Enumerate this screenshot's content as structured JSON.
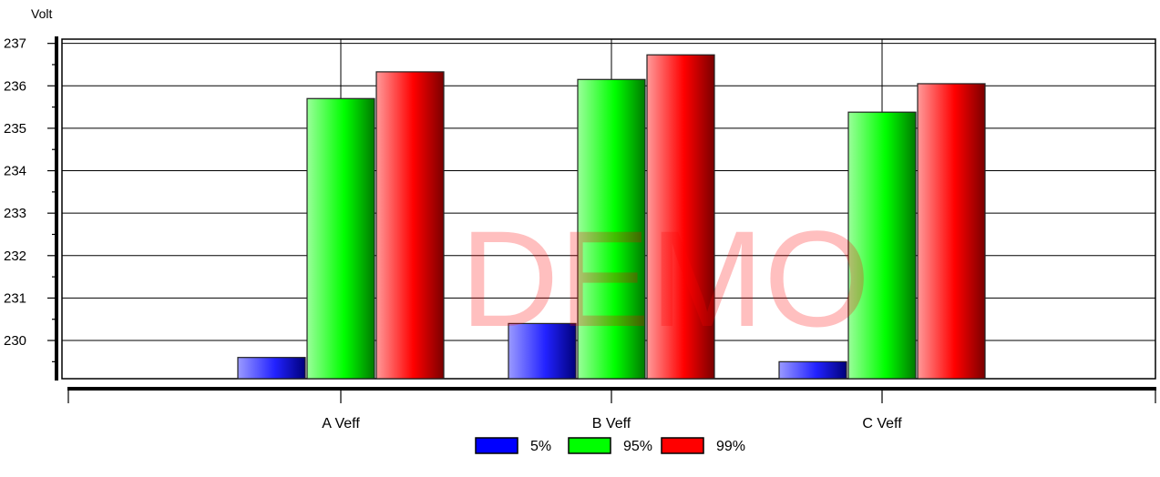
{
  "chart_data": {
    "type": "bar",
    "title": "",
    "xlabel": "",
    "ylabel": "Volt",
    "categories": [
      "A Veff",
      "B Veff",
      "C Veff"
    ],
    "series": [
      {
        "name": "5%",
        "values": [
          229.6,
          230.4,
          229.5
        ]
      },
      {
        "name": "95%",
        "values": [
          235.7,
          236.15,
          235.38
        ]
      },
      {
        "name": "99%",
        "values": [
          236.33,
          236.73,
          236.05
        ]
      }
    ],
    "ylim": [
      229.1,
      237.1
    ],
    "yticks": [
      230,
      231,
      232,
      233,
      234,
      235,
      236,
      237
    ],
    "grid": true,
    "legend": "bottom-center",
    "watermark": "DEMO",
    "colors": {
      "5%": "#0000ff",
      "95%": "#00ff00",
      "99%": "#ff0000"
    }
  }
}
